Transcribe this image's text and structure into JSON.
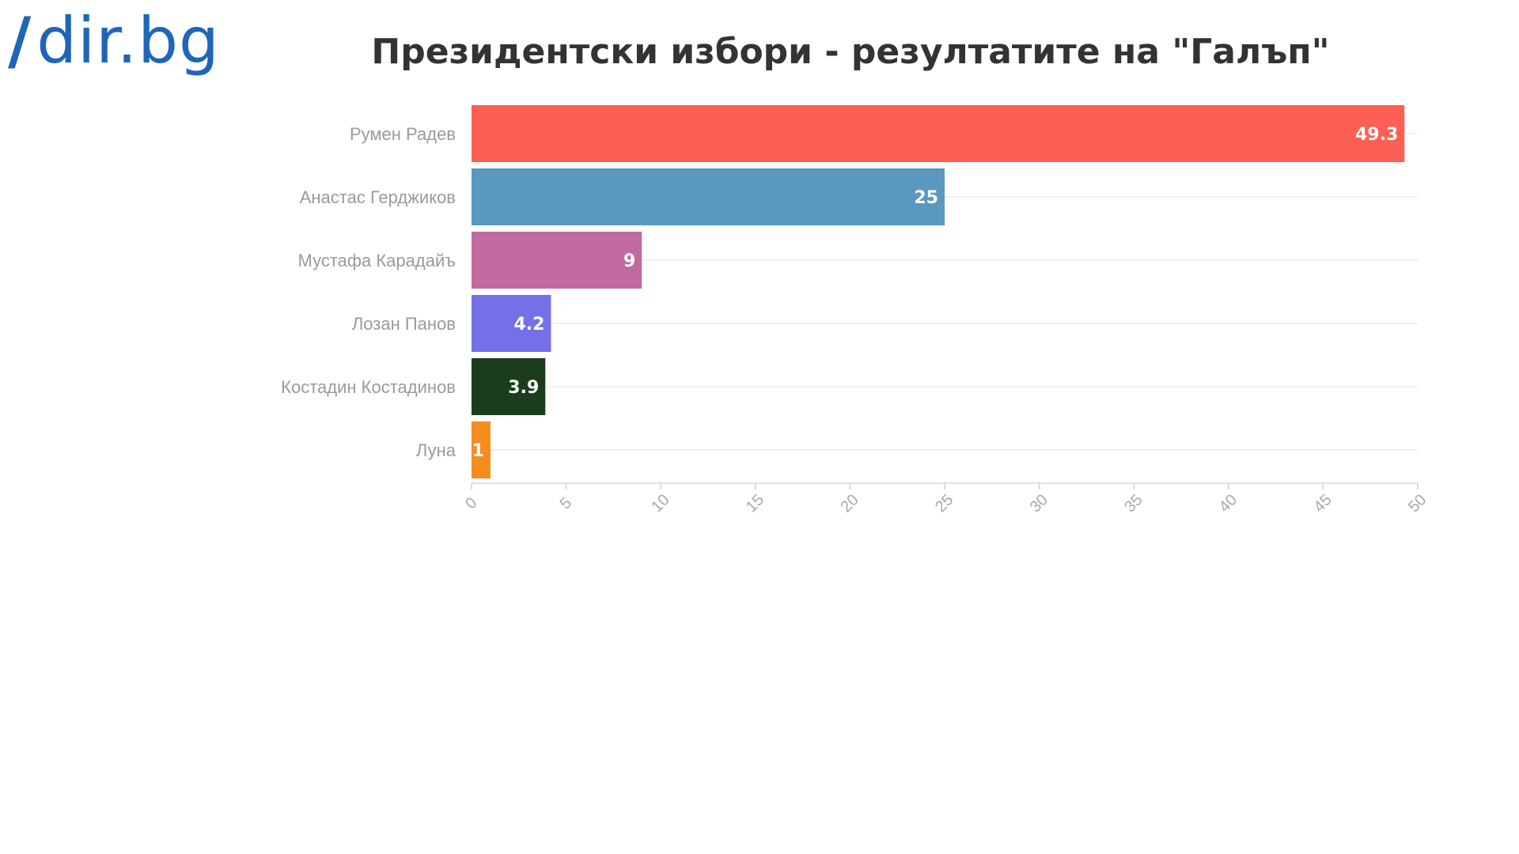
{
  "logo": {
    "slash": "/",
    "name": "dir.bg"
  },
  "colors": {
    "logo": "#1e66b8"
  },
  "chart_data": {
    "type": "bar",
    "orientation": "horizontal",
    "title": "Президентски избори - резултатите на \"Галъп\"",
    "xlabel": "",
    "ylabel": "",
    "categories": [
      "Румен Радев",
      "Анастас Герджиков",
      "Мустафа Карадайъ",
      "Лозан Панов",
      "Костадин Костадинов",
      "Луна"
    ],
    "values": [
      49.3,
      25,
      9,
      4.2,
      3.9,
      1
    ],
    "value_labels": [
      "49.3",
      "25",
      "9",
      "4.2",
      "3.9",
      "1"
    ],
    "colors": [
      "#fc5f54",
      "#5a99bf",
      "#c06aa0",
      "#7370e8",
      "#1c3d1c",
      "#f58c1e"
    ],
    "xlim": [
      0,
      50
    ],
    "x_ticks": [
      "0",
      "5",
      "10",
      "15",
      "20",
      "25",
      "30",
      "35",
      "40",
      "45",
      "50"
    ],
    "tick_label_rotation": "diagonal",
    "grid": true,
    "legend": "none"
  }
}
